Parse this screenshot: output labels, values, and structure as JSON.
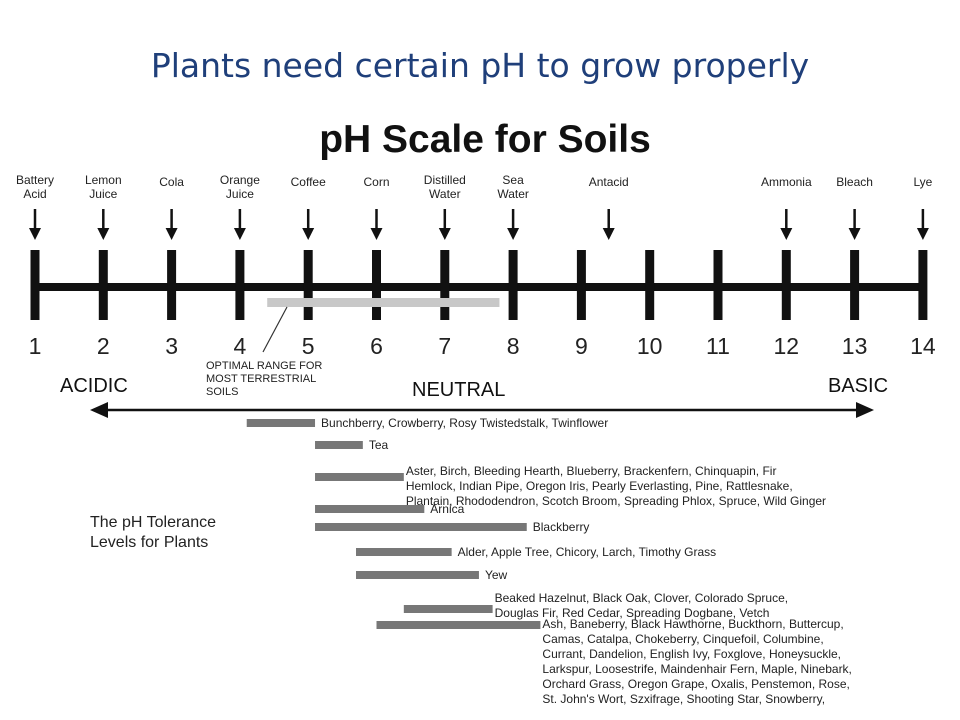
{
  "slide_title": "Plants need certain pH to grow properly",
  "scale_title": "pH Scale for Soils",
  "substances": [
    {
      "lines": [
        "Battery",
        "Acid"
      ],
      "ph": 1
    },
    {
      "lines": [
        "Lemon",
        "Juice"
      ],
      "ph": 2
    },
    {
      "lines": [
        "Cola"
      ],
      "ph": 3
    },
    {
      "lines": [
        "Orange",
        "Juice"
      ],
      "ph": 4
    },
    {
      "lines": [
        "Coffee"
      ],
      "ph": 5
    },
    {
      "lines": [
        "Corn"
      ],
      "ph": 6
    },
    {
      "lines": [
        "Distilled",
        "Water"
      ],
      "ph": 7
    },
    {
      "lines": [
        "Sea",
        "Water"
      ],
      "ph": 8
    },
    {
      "lines": [
        "Antacid"
      ],
      "ph": 9.4
    },
    {
      "lines": [
        "Ammonia"
      ],
      "ph": 12
    },
    {
      "lines": [
        "Bleach"
      ],
      "ph": 13
    },
    {
      "lines": [
        "Lye"
      ],
      "ph": 14
    }
  ],
  "scale_numbers": [
    "1",
    "2",
    "3",
    "4",
    "5",
    "6",
    "7",
    "8",
    "9",
    "10",
    "11",
    "12",
    "13",
    "14"
  ],
  "optimal_range": {
    "from": 4.4,
    "to": 7.8,
    "label_lines": [
      "OPTIMAL RANGE FOR",
      "MOST TERRESTRIAL",
      "SOILS"
    ]
  },
  "regions": {
    "acidic": "ACIDIC",
    "neutral": "NEUTRAL",
    "basic": "BASIC"
  },
  "legend_lines": [
    "The pH Tolerance",
    "Levels for Plants"
  ],
  "tolerances": [
    {
      "from": 4.1,
      "to": 5.1,
      "lines": [
        "Bunchberry, Crowberry, Rosy Twistedstalk, Twinflower"
      ]
    },
    {
      "from": 5.1,
      "to": 5.8,
      "lines": [
        "Tea"
      ]
    },
    {
      "from": 5.1,
      "to": 6.4,
      "lines": [
        "Aster, Birch, Bleeding Hearth, Blueberry, Brackenfern, Chinquapin, Fir",
        "Hemlock, Indian Pipe, Oregon Iris, Pearly Everlasting, Pine, Rattlesnake,",
        "Plantain, Rhododendron, Scotch Broom, Spreading Phlox, Spruce, Wild Ginger"
      ]
    },
    {
      "from": 5.1,
      "to": 6.7,
      "lines": [
        "Arnica"
      ]
    },
    {
      "from": 5.1,
      "to": 8.2,
      "lines": [
        "Blackberry"
      ]
    },
    {
      "from": 5.7,
      "to": 7.1,
      "lines": [
        "Alder, Apple Tree, Chicory, Larch, Timothy Grass"
      ]
    },
    {
      "from": 5.7,
      "to": 7.5,
      "lines": [
        "Yew"
      ]
    },
    {
      "from": 6.4,
      "to": 7.7,
      "lines": [
        "Beaked Hazelnut, Black Oak, Clover, Colorado Spruce,",
        "Douglas Fir, Red Cedar, Spreading Dogbane, Vetch"
      ]
    },
    {
      "from": 6.0,
      "to": 8.4,
      "lines": [
        "Ash, Baneberry, Black Hawthorne, Buckthorn, Buttercup,",
        "Camas, Catalpa, Chokeberry, Cinquefoil, Columbine,",
        "Currant, Dandelion, English Ivy, Foxglove, Honeysuckle,",
        "Larkspur, Loosestrife, Maindenhair Fern, Maple, Ninebark,",
        "Orchard Grass, Oregon Grape, Oxalis, Penstemon, Rose,",
        "St. John's Wort, Szxifrage, Shooting Star, Snowberry,"
      ]
    }
  ]
}
